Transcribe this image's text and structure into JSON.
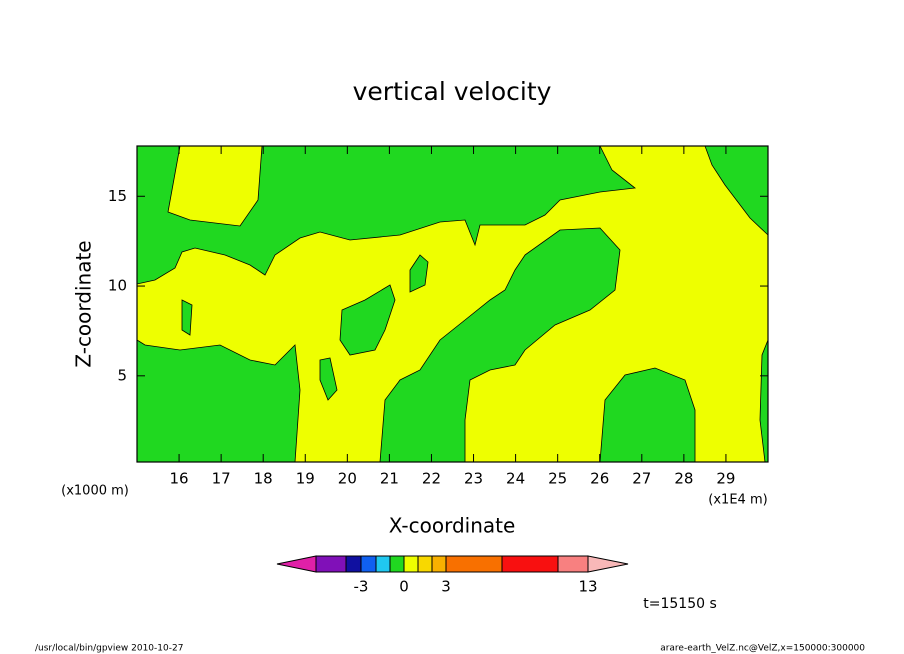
{
  "chart_data": {
    "type": "contour",
    "title": "vertical velocity",
    "xlabel": "X-coordinate",
    "ylabel": "Z-coordinate",
    "x_unit": "(x1E4 m)",
    "y_unit": "(x1000 m)",
    "xlim": [
      15,
      30
    ],
    "xticks": [
      16,
      17,
      18,
      19,
      20,
      21,
      22,
      23,
      24,
      25,
      26,
      27,
      28,
      29
    ],
    "ylim": [
      0.2,
      17.8
    ],
    "yticks": [
      5,
      10,
      15
    ],
    "colorbar": {
      "colors": [
        "#e020a8",
        "#8010b8",
        "#1010a0",
        "#1060f0",
        "#20c8f0",
        "#20d820",
        "#eeff00",
        "#f8d800",
        "#f8b000",
        "#f87000",
        "#f81010",
        "#f88080",
        "#f8b8b8"
      ],
      "levels": [
        -10,
        -5,
        -3,
        -2,
        -1,
        0,
        1,
        2,
        3,
        8,
        11,
        13
      ],
      "ticks": [
        -3,
        0,
        3,
        13
      ]
    },
    "time_label": "t=15150 s"
  },
  "footer": {
    "left": "/usr/local/bin/gpview   2010-10-27",
    "right": "arare-earth_VelZ.nc@VelZ,x=150000:300000"
  }
}
